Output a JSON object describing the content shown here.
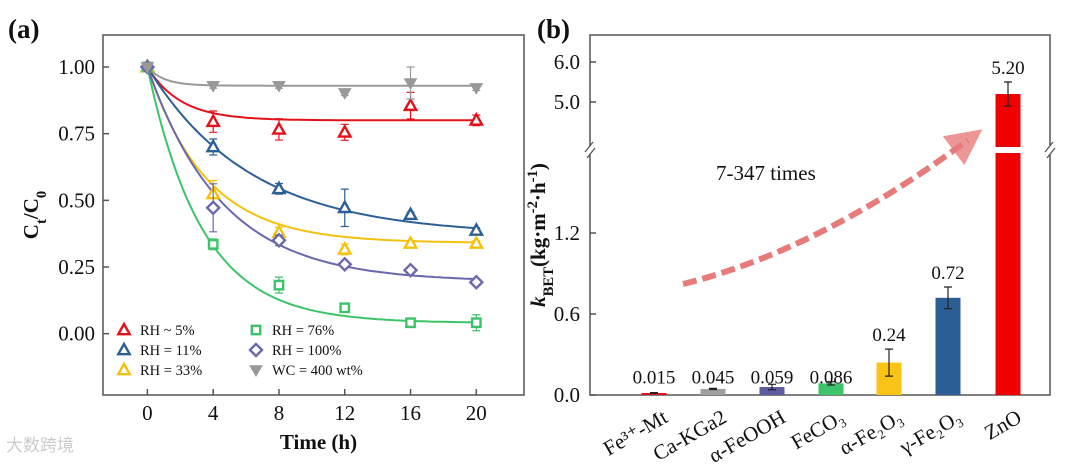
{
  "watermark": "大数跨境",
  "chart_data": [
    {
      "panel_label": "(a)",
      "type": "scatter",
      "xlabel": "Time (h)",
      "ylabel_parts": [
        {
          "t": "C"
        },
        {
          "t": "t",
          "sub": true
        },
        {
          "t": "/C"
        },
        {
          "t": "0",
          "sub": true
        }
      ],
      "xlim": [
        -2.7,
        22.9
      ],
      "ylim": [
        -0.23,
        1.12
      ],
      "xticks": [
        0,
        4,
        8,
        12,
        16,
        20
      ],
      "yticks": [
        0.0,
        0.25,
        0.5,
        0.75,
        1.0
      ],
      "ytick_labels": [
        "0.00",
        "0.25",
        "0.50",
        "0.75",
        "1.00"
      ],
      "legend_position": "bottom-left",
      "x": [
        0,
        4,
        8,
        12,
        16,
        20
      ],
      "series": [
        {
          "name": "RH ~ 5%",
          "marker": "triangle",
          "color": "#e3121a",
          "values": [
            1.0,
            0.795,
            0.766,
            0.755,
            0.855,
            0.8
          ],
          "errors": [
            0,
            0.04,
            0.04,
            0.03,
            0.05,
            0.02
          ],
          "fit": {
            "plateau": 0.8,
            "k": 0.5
          }
        },
        {
          "name": "RH = 11%",
          "marker": "triangle",
          "color": "#2d5f97",
          "values": [
            1.0,
            0.7,
            0.543,
            0.472,
            0.446,
            0.387
          ],
          "errors": [
            0,
            0.03,
            0.02,
            0.07,
            0.01,
            0.01
          ],
          "fit": {
            "plateau": 0.37,
            "k": 0.16
          }
        },
        {
          "name": "RH = 33%",
          "marker": "triangle",
          "color": "#f4c20d",
          "values": [
            1.0,
            0.524,
            0.379,
            0.316,
            0.338,
            0.338
          ],
          "errors": [
            0,
            0.05,
            0.02,
            0.02,
            0.01,
            0.01
          ],
          "fit": {
            "plateau": 0.34,
            "k": 0.28
          }
        },
        {
          "name": "RH = 76%",
          "marker": "square",
          "color": "#3cc46a",
          "values": [
            1.0,
            0.335,
            0.182,
            0.097,
            0.041,
            0.041
          ],
          "errors": [
            0,
            0.02,
            0.03,
            0.01,
            0.01,
            0.03
          ],
          "fit": {
            "plateau": 0.04,
            "k": 0.3
          }
        },
        {
          "name": "RH = 100%",
          "marker": "diamond",
          "color": "#6a68ad",
          "values": [
            1.0,
            0.472,
            0.35,
            0.26,
            0.238,
            0.193
          ],
          "errors": [
            0,
            0.09,
            0.02,
            0.01,
            0.01,
            0.01
          ],
          "fit": {
            "plateau": 0.195,
            "k": 0.22
          }
        },
        {
          "name": "WC = 400 wt%",
          "marker": "triangle-down",
          "color": "#999999",
          "values": [
            1.0,
            0.93,
            0.93,
            0.903,
            0.94,
            0.922
          ],
          "errors": [
            0,
            0.01,
            0.01,
            0.01,
            0.06,
            0.01
          ],
          "fit": {
            "plateau": 0.93,
            "k": 1.0
          }
        }
      ]
    },
    {
      "panel_label": "(b)",
      "type": "bar",
      "ylabel_parts": [
        {
          "t": "k",
          "italic": true
        },
        {
          "t": "BET",
          "sub": true
        },
        {
          "t": "(kg·m"
        },
        {
          "t": "-2",
          "sup": true
        },
        {
          "t": "·h"
        },
        {
          "t": "-1",
          "sup": true
        },
        {
          "t": ")"
        }
      ],
      "axis_break": [
        1.8,
        4.6
      ],
      "ylim_lower": [
        0,
        1.8
      ],
      "ylim_upper": [
        4.6,
        6.3
      ],
      "yticks": [
        0.0,
        0.6,
        1.2,
        5.0,
        6.0
      ],
      "ytick_labels": [
        "0.0",
        "0.6",
        "1.2",
        "5.0",
        "6.0"
      ],
      "categories": [
        "Fe³⁺-Mt",
        "Ca-KGa2",
        "α-FeOOH",
        "FeCO₃",
        "α-Fe₂O₃",
        "γ-Fe₂O₃",
        "ZnO"
      ],
      "values": [
        0.015,
        0.045,
        0.059,
        0.086,
        0.24,
        0.72,
        5.2
      ],
      "value_labels": [
        "0.015",
        "0.045",
        "0.059",
        "0.086",
        "0.24",
        "0.72",
        "5.20"
      ],
      "errors": [
        0.003,
        0.004,
        0.02,
        0.012,
        0.1,
        0.08,
        0.3
      ],
      "colors": [
        "#e3121a",
        "#a0a0a0",
        "#5d5c9e",
        "#3cc46a",
        "#f9c416",
        "#2d5f97",
        "#f00000"
      ],
      "annotation": "7-347 times"
    }
  ]
}
